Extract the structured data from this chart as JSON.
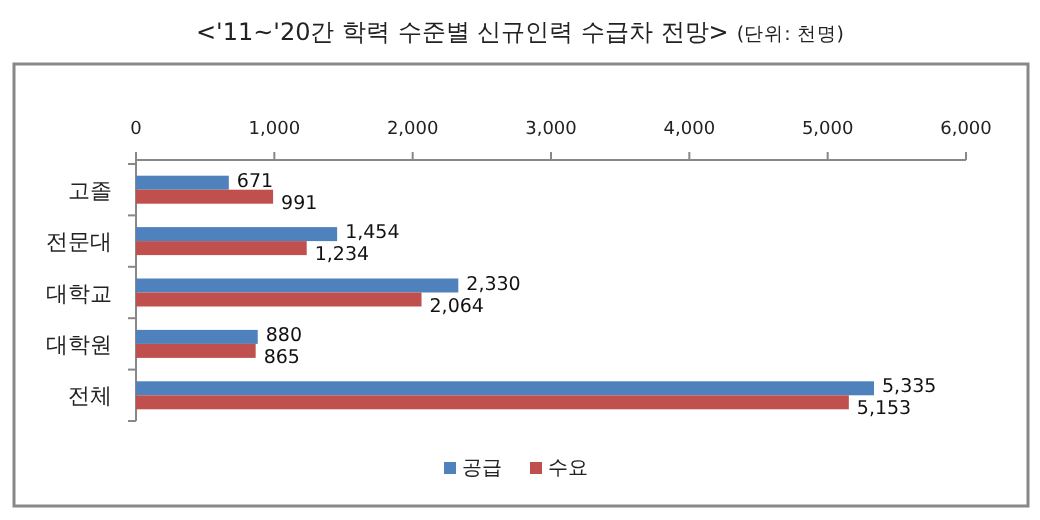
{
  "chart_data": {
    "type": "bar",
    "orientation": "horizontal",
    "title": "<'11~'20간 학력 수준별 신규인력 수급차 전망>",
    "subtitle": "(단위: 천명)",
    "categories": [
      "고졸",
      "전문대",
      "대학교",
      "대학원",
      "전체"
    ],
    "series": [
      {
        "name": "공급",
        "color": "#4f81bd",
        "values": [
          671,
          1454,
          2330,
          880,
          5335
        ],
        "value_labels": [
          "671",
          "1,454",
          "2,330",
          "880",
          "5,335"
        ]
      },
      {
        "name": "수요",
        "color": "#c0504d",
        "values": [
          991,
          1234,
          2064,
          865,
          5153
        ],
        "value_labels": [
          "991",
          "1,234",
          "2,064",
          "865",
          "5,153"
        ]
      }
    ],
    "xlim": [
      0,
      6000
    ],
    "xticks": [
      {
        "value": 0,
        "label": "0"
      },
      {
        "value": 1000,
        "label": "1,000"
      },
      {
        "value": 2000,
        "label": "2,000"
      },
      {
        "value": 3000,
        "label": "3,000"
      },
      {
        "value": 4000,
        "label": "4,000"
      },
      {
        "value": 5000,
        "label": "5,000"
      },
      {
        "value": 6000,
        "label": "6,000"
      }
    ],
    "legend": "bottom"
  }
}
